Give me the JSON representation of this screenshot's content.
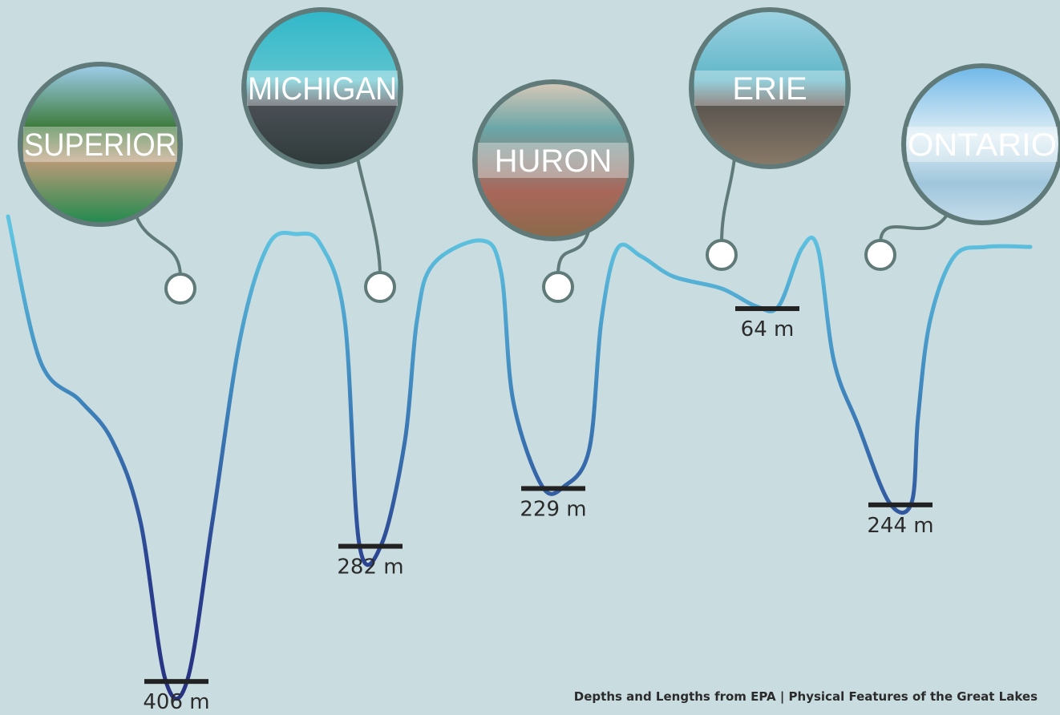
{
  "chart_data": {
    "type": "depth-profile",
    "categories": [
      "SUPERIOR",
      "MICHIGAN",
      "HURON",
      "ERIE",
      "ONTARIO"
    ],
    "values": [
      406,
      282,
      229,
      64,
      244
    ],
    "value_labels": [
      "406 m",
      "282 m",
      "229 m",
      "64 m",
      "244 m"
    ],
    "ylim": [
      0,
      450
    ],
    "source": "Depths and Lengths from EPA | Physical Features of the Great Lakes"
  }
}
